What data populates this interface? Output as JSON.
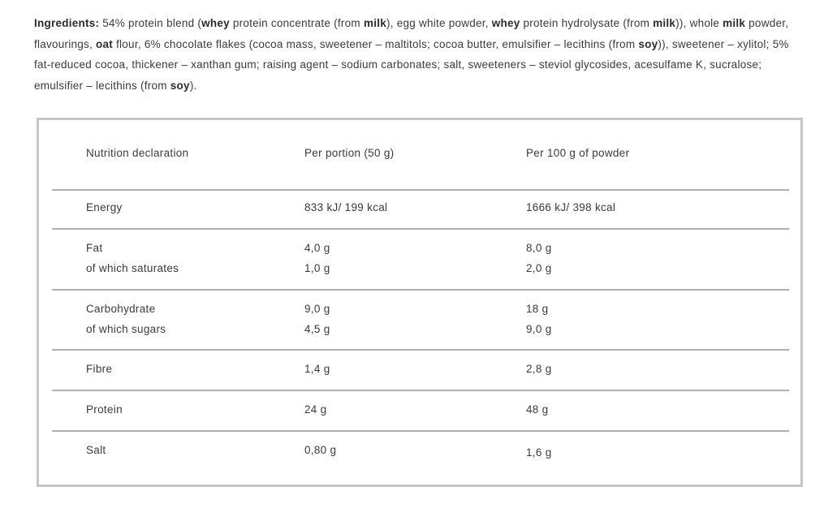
{
  "ingredients": {
    "segments": [
      {
        "text": "Ingredients: ",
        "bold": true
      },
      {
        "text": "54% protein blend (",
        "bold": false
      },
      {
        "text": "whey",
        "bold": true
      },
      {
        "text": " protein concentrate (from ",
        "bold": false
      },
      {
        "text": "milk",
        "bold": true
      },
      {
        "text": "), egg white powder, ",
        "bold": false
      },
      {
        "text": "whey",
        "bold": true
      },
      {
        "text": " protein hydrolysate (from ",
        "bold": false
      },
      {
        "text": "milk",
        "bold": true
      },
      {
        "text": ")), whole ",
        "bold": false
      },
      {
        "text": "milk",
        "bold": true
      },
      {
        "text": " powder, flavourings, ",
        "bold": false
      },
      {
        "text": "oat",
        "bold": true
      },
      {
        "text": " flour, 6% chocolate flakes (cocoa mass, sweetener – maltitols; cocoa butter, emulsifier – lecithins (from ",
        "bold": false
      },
      {
        "text": "soy",
        "bold": true
      },
      {
        "text": ")), sweetener – xylitol; 5% fat-reduced cocoa, thickener – xanthan gum; raising agent – sodium carbonates; salt, sweeteners – steviol glycosides, acesulfame K, sucralose; emulsifier – lecithins (from ",
        "bold": false
      },
      {
        "text": "soy",
        "bold": true
      },
      {
        "text": ").",
        "bold": false
      }
    ]
  },
  "table": {
    "headers": [
      "Nutrition declaration",
      "Per portion (50 g)",
      "Per 100 g of powder"
    ],
    "rows": [
      {
        "name": "energy",
        "lines": [
          [
            "Energy",
            "833 kJ/ 199 kcal",
            "1666 kJ/ 398 kcal"
          ]
        ]
      },
      {
        "name": "fat",
        "lines": [
          [
            "Fat",
            "4,0 g",
            "8,0 g"
          ],
          [
            "of which saturates",
            "1,0 g",
            "2,0 g"
          ]
        ]
      },
      {
        "name": "carbohydrate",
        "lines": [
          [
            "Carbohydrate",
            "9,0 g",
            "18 g"
          ],
          [
            "of which sugars",
            "4,5 g",
            "9,0 g"
          ]
        ]
      },
      {
        "name": "fibre",
        "lines": [
          [
            "Fibre",
            "1,4 g",
            "2,8 g"
          ]
        ]
      },
      {
        "name": "protein",
        "lines": [
          [
            "Protein",
            "24 g",
            "48 g"
          ]
        ]
      },
      {
        "name": "salt",
        "lines": [
          [
            "Salt",
            "0,80 g",
            "1,6 g"
          ]
        ],
        "dy3": 3
      }
    ]
  },
  "colors": {
    "text": "#3a3a3a",
    "bold_text": "#2b2b2b",
    "border": "#c6c6c6",
    "separator": "#b0b0b0"
  }
}
